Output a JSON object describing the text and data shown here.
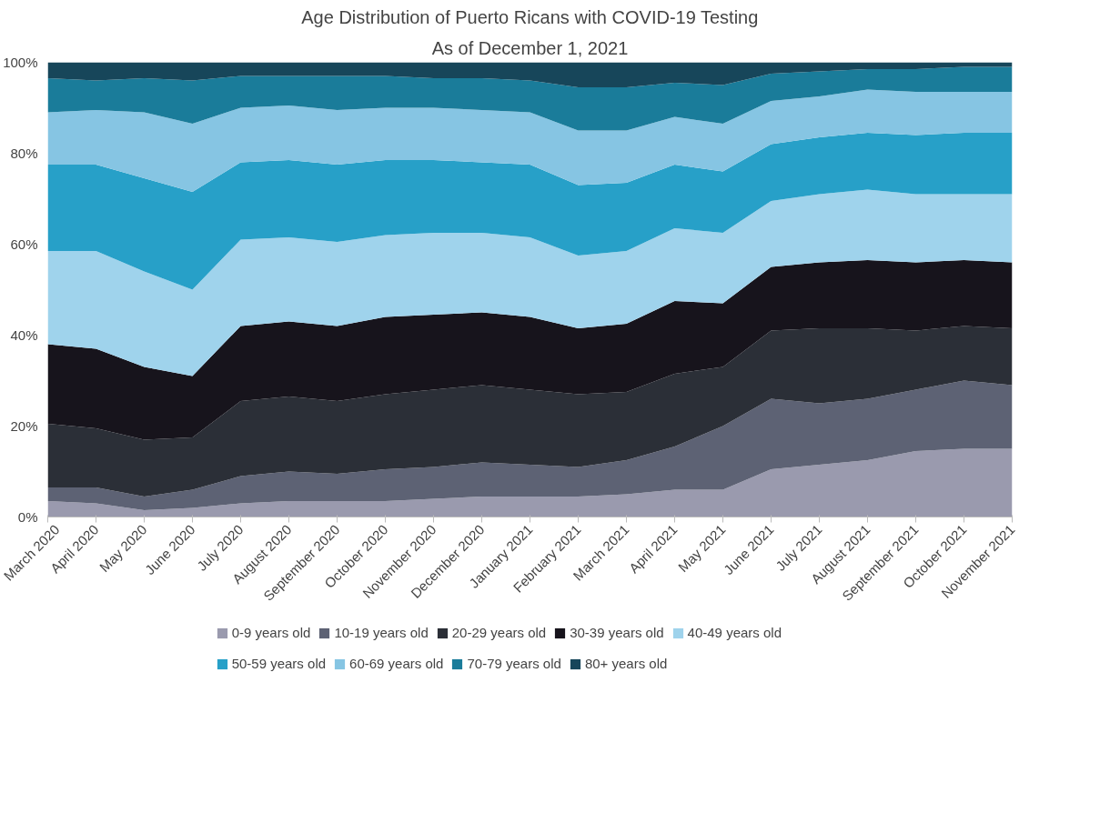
{
  "chart_data": {
    "type": "area",
    "stacked": true,
    "title": "Age Distribution of Puerto Ricans with COVID-19 Testing",
    "subtitle": "As of December 1, 2021",
    "categories": [
      "March 2020",
      "April 2020",
      "May 2020",
      "June 2020",
      "July 2020",
      "August 2020",
      "September 2020",
      "October 2020",
      "November 2020",
      "December 2020",
      "January 2021",
      "February 2021",
      "March 2021",
      "April 2021",
      "May 2021",
      "June 2021",
      "July 2021",
      "August 2021",
      "September 2021",
      "October 2021",
      "November 2021"
    ],
    "ylim": [
      0,
      100
    ],
    "yticks": [
      {
        "value": 0,
        "label": "0%"
      },
      {
        "value": 20,
        "label": "20%"
      },
      {
        "value": 40,
        "label": "40%"
      },
      {
        "value": 60,
        "label": "60%"
      },
      {
        "value": 80,
        "label": "80%"
      },
      {
        "value": 100,
        "label": "100%"
      }
    ],
    "grid": false,
    "legend": "bottom",
    "series": [
      {
        "name": "0-9 years old",
        "color": "#9a9aae",
        "values": [
          3.5,
          3,
          1.5,
          2,
          3,
          3.5,
          3.5,
          3.5,
          4,
          4.5,
          4.5,
          4.5,
          5,
          6,
          6,
          10.5,
          11.5,
          12.5,
          14.5,
          15,
          15
        ]
      },
      {
        "name": "10-19 years old",
        "color": "#5d6274",
        "values": [
          3,
          3.5,
          3,
          4,
          6,
          6.5,
          6,
          7,
          7,
          7.5,
          7,
          6.5,
          7.5,
          9.5,
          14,
          15.5,
          13.5,
          13.5,
          13.5,
          15,
          14
        ]
      },
      {
        "name": "20-29 years old",
        "color": "#2b2f37",
        "values": [
          14,
          13,
          12.5,
          11.5,
          16.5,
          16.5,
          16,
          16.5,
          17,
          17,
          16.5,
          16,
          15,
          16,
          13,
          15,
          16.5,
          15.5,
          13,
          12,
          12.5
        ]
      },
      {
        "name": "30-39 years old",
        "color": "#17141c",
        "values": [
          17.5,
          17.5,
          16,
          13.5,
          16.5,
          16.5,
          16.5,
          17,
          16.5,
          16,
          16,
          14.5,
          15,
          16,
          14,
          14,
          14.5,
          15,
          15,
          14.5,
          14.5
        ]
      },
      {
        "name": "40-49 years old",
        "color": "#9fd3ec",
        "values": [
          20.5,
          21.5,
          21,
          19,
          19,
          18.5,
          18.5,
          18,
          18,
          17.5,
          17.5,
          16,
          16,
          16,
          15.5,
          14.5,
          15,
          15.5,
          15,
          14.5,
          15
        ]
      },
      {
        "name": "50-59 years old",
        "color": "#27a0c8",
        "values": [
          19,
          19,
          20.5,
          21.5,
          17,
          17,
          17,
          16.5,
          16,
          15.5,
          16,
          15.5,
          15,
          14,
          13.5,
          12.5,
          12.5,
          12.5,
          13,
          13.5,
          13.5
        ]
      },
      {
        "name": "60-69 years old",
        "color": "#86c5e3",
        "values": [
          11.5,
          12,
          14.5,
          15,
          12,
          12,
          12,
          11.5,
          11.5,
          11.5,
          11.5,
          12,
          11.5,
          10.5,
          10.5,
          9.5,
          9,
          9.5,
          9.5,
          9,
          9
        ]
      },
      {
        "name": "70-79 years old",
        "color": "#1a7c9a",
        "values": [
          7.5,
          6.5,
          7.5,
          9.5,
          7,
          6.5,
          7.5,
          7,
          6.5,
          7,
          7,
          9.5,
          9.5,
          7.5,
          8.5,
          6,
          5.5,
          4.5,
          5,
          5.5,
          5.5
        ]
      },
      {
        "name": "80+ years old",
        "color": "#17465a",
        "values": [
          3.5,
          4,
          3.5,
          4,
          3,
          3,
          3,
          3,
          3.5,
          3.5,
          4,
          5.5,
          5.5,
          4.5,
          5,
          2.5,
          2,
          1.5,
          1.5,
          1,
          1
        ]
      }
    ]
  }
}
